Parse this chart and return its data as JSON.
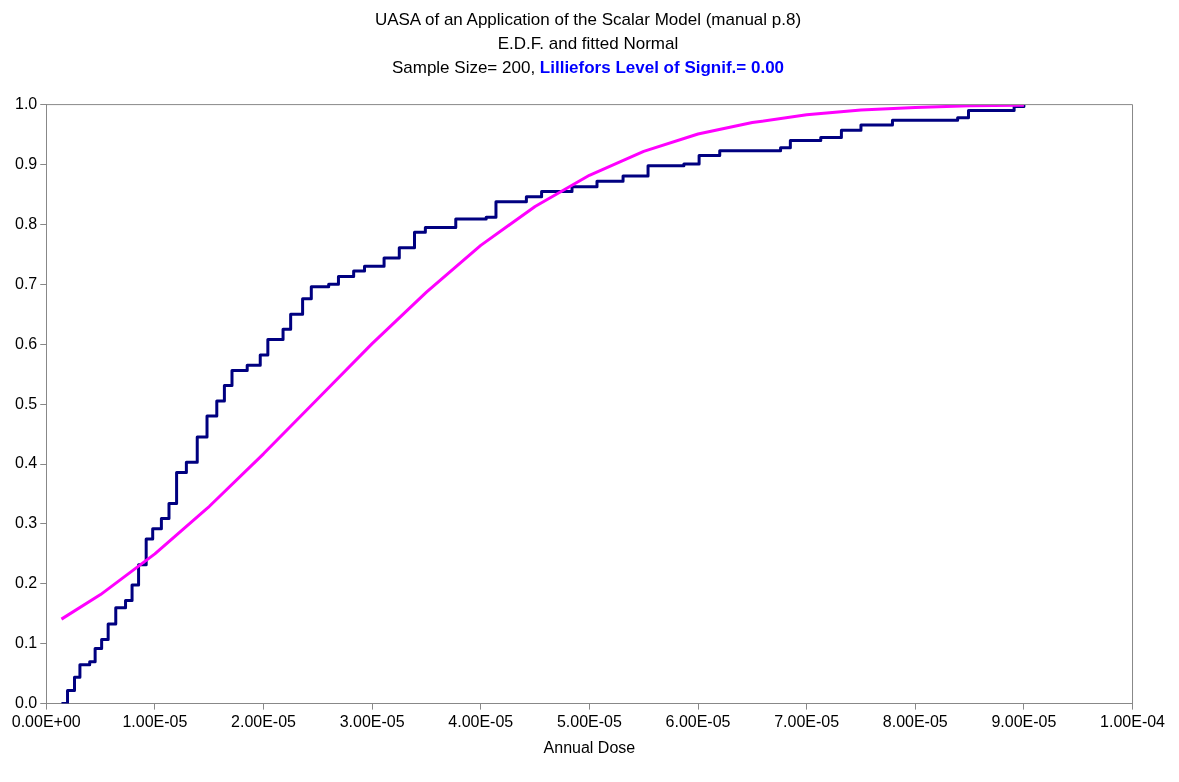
{
  "chart_data": {
    "type": "line",
    "title": "UASA of an Application  of the Scalar Model (manual p.8)",
    "subtitle": "E.D.F. and fitted Normal",
    "annotations": [
      "Sample Size=  200,",
      "Lilliefors Level of Signif.= 0.00"
    ],
    "xlabel": "Annual Dose",
    "xlim": [
      0,
      0.0001
    ],
    "xticks": [
      {
        "value": 0,
        "label": "0.00E+00"
      },
      {
        "value": 1e-05,
        "label": "1.00E-05"
      },
      {
        "value": 2e-05,
        "label": "2.00E-05"
      },
      {
        "value": 3e-05,
        "label": "3.00E-05"
      },
      {
        "value": 4e-05,
        "label": "4.00E-05"
      },
      {
        "value": 5e-05,
        "label": "5.00E-05"
      },
      {
        "value": 6e-05,
        "label": "6.00E-05"
      },
      {
        "value": 7e-05,
        "label": "7.00E-05"
      },
      {
        "value": 8e-05,
        "label": "8.00E-05"
      },
      {
        "value": 9e-05,
        "label": "9.00E-05"
      },
      {
        "value": 0.0001,
        "label": "1.00E-04"
      }
    ],
    "ylim": [
      0,
      1
    ],
    "yticks": [
      {
        "value": 0,
        "label": "0.0"
      },
      {
        "value": 0.1,
        "label": "0.1"
      },
      {
        "value": 0.2,
        "label": "0.2"
      },
      {
        "value": 0.3,
        "label": "0.3"
      },
      {
        "value": 0.4,
        "label": "0.4"
      },
      {
        "value": 0.5,
        "label": "0.5"
      },
      {
        "value": 0.6,
        "label": "0.6"
      },
      {
        "value": 0.7,
        "label": "0.7"
      },
      {
        "value": 0.8,
        "label": "0.8"
      },
      {
        "value": 0.9,
        "label": "0.9"
      },
      {
        "value": 1,
        "label": "1.0"
      }
    ],
    "grid": false,
    "legend": false,
    "marker": "none",
    "series": [
      {
        "type": "step",
        "color": "#000080",
        "x": [
          1.4e-06,
          1.96e-06,
          2.6e-06,
          3.1e-06,
          4e-06,
          4.5e-06,
          5.1e-06,
          5.7e-06,
          6.4e-06,
          7.3e-06,
          7.9e-06,
          8.5e-06,
          9.2e-06,
          9.8e-06,
          1.06e-05,
          1.13e-05,
          1.2e-05,
          1.29e-05,
          1.39e-05,
          1.48e-05,
          1.57e-05,
          1.64e-05,
          1.71e-05,
          1.85e-05,
          1.97e-05,
          2.04e-05,
          2.18e-05,
          2.25e-05,
          2.36e-05,
          2.44e-05,
          2.6e-05,
          2.69e-05,
          2.83e-05,
          2.93e-05,
          3.11e-05,
          3.25e-05,
          3.39e-05,
          3.49e-05,
          3.77e-05,
          4.05e-05,
          4.14e-05,
          4.42e-05,
          4.56e-05,
          4.84e-05,
          5.07e-05,
          5.31e-05,
          5.54e-05,
          5.87e-05,
          6.01e-05,
          6.2e-05,
          6.76e-05,
          6.85e-05,
          7.13e-05,
          7.32e-05,
          7.5e-05,
          7.79e-05,
          8.39e-05,
          8.49e-05,
          8.91e-05,
          9e-05
        ],
        "values": [
          0.0,
          0.022,
          0.044,
          0.065,
          0.07,
          0.092,
          0.107,
          0.133,
          0.16,
          0.172,
          0.198,
          0.232,
          0.275,
          0.292,
          0.309,
          0.334,
          0.386,
          0.403,
          0.445,
          0.48,
          0.505,
          0.531,
          0.556,
          0.565,
          0.582,
          0.608,
          0.625,
          0.65,
          0.676,
          0.696,
          0.7,
          0.713,
          0.722,
          0.73,
          0.744,
          0.761,
          0.787,
          0.795,
          0.809,
          0.812,
          0.838,
          0.846,
          0.855,
          0.863,
          0.872,
          0.881,
          0.898,
          0.901,
          0.915,
          0.923,
          0.928,
          0.94,
          0.945,
          0.957,
          0.966,
          0.974,
          0.978,
          0.99,
          0.997,
          1.0
        ]
      },
      {
        "type": "line",
        "color": "#ff00ff",
        "x": [
          1.4e-06,
          5e-06,
          1e-05,
          1.5e-05,
          2e-05,
          2.5e-05,
          3e-05,
          3.5e-05,
          4e-05,
          4.5e-05,
          5e-05,
          5.5e-05,
          6e-05,
          6.5e-05,
          7e-05,
          7.5e-05,
          8e-05,
          8.5e-05,
          9e-05
        ],
        "values": [
          0.141,
          0.182,
          0.25,
          0.329,
          0.417,
          0.509,
          0.601,
          0.687,
          0.765,
          0.83,
          0.882,
          0.922,
          0.951,
          0.97,
          0.983,
          0.991,
          0.995,
          0.998,
          0.999
        ]
      }
    ]
  }
}
